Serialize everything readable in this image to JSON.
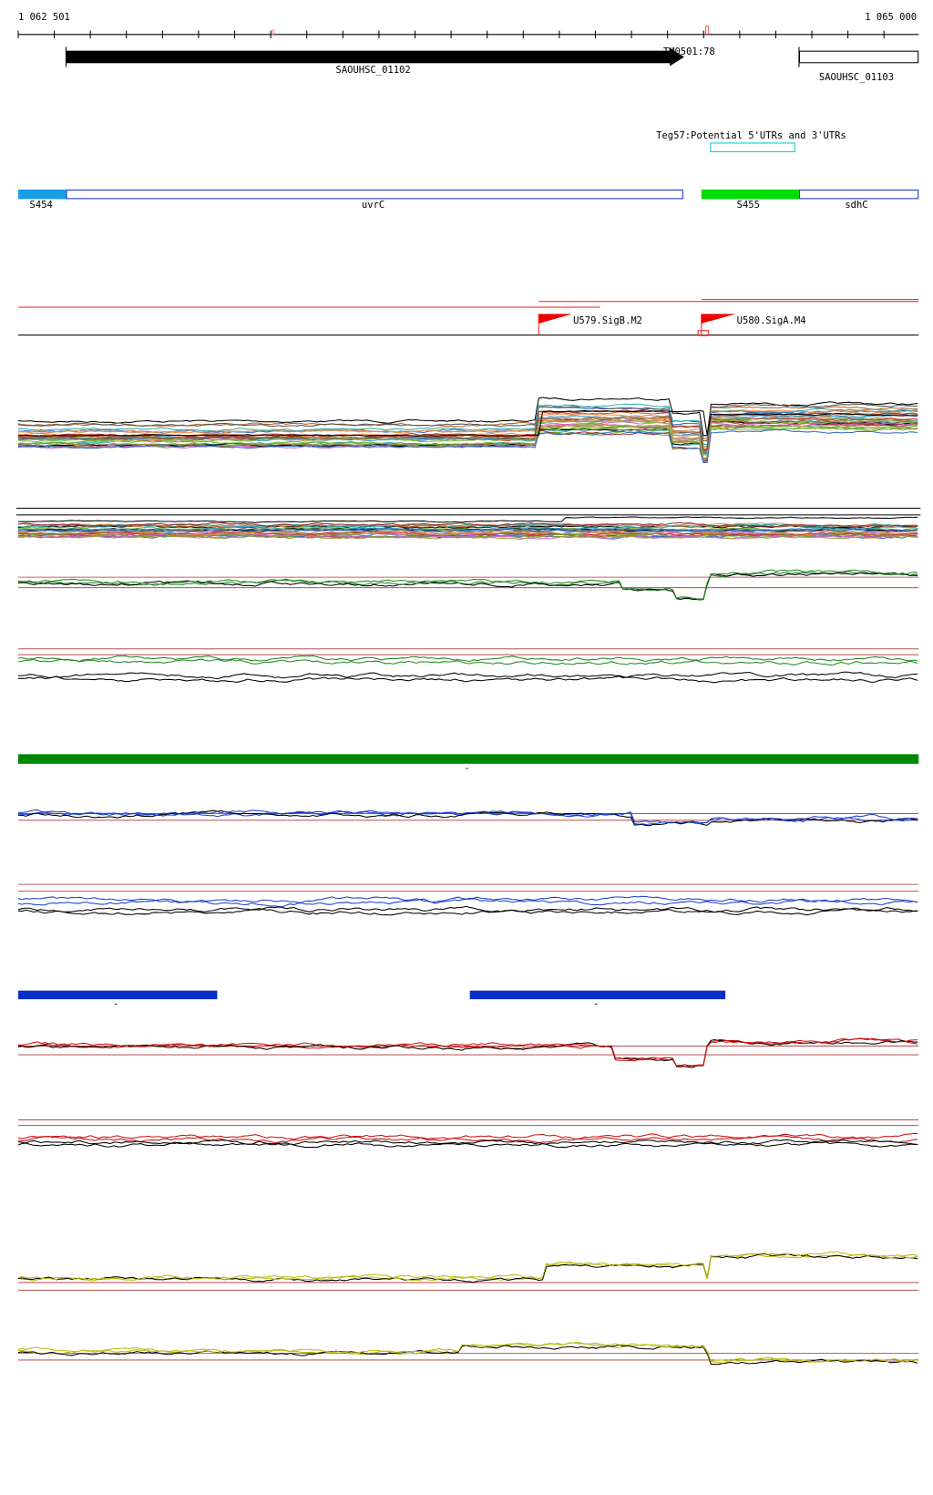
{
  "ruler": {
    "start": "1 062 501",
    "end": "1 065 000"
  },
  "genes": [
    {
      "label": "SAOUHSC_01102"
    },
    {
      "label": "SAOUHSC_01103"
    }
  ],
  "feature_label": "TM0501:78",
  "utr_track": {
    "label": "Teg57:Potential 5'UTRs and 3'UTRs"
  },
  "regions": [
    "S454",
    "uvrC",
    "S455",
    "sdhC"
  ],
  "promoters": [
    "U579.SigB.M2",
    "U580.SigA.M4"
  ],
  "markers": [
    "-",
    "-",
    "-"
  ]
}
